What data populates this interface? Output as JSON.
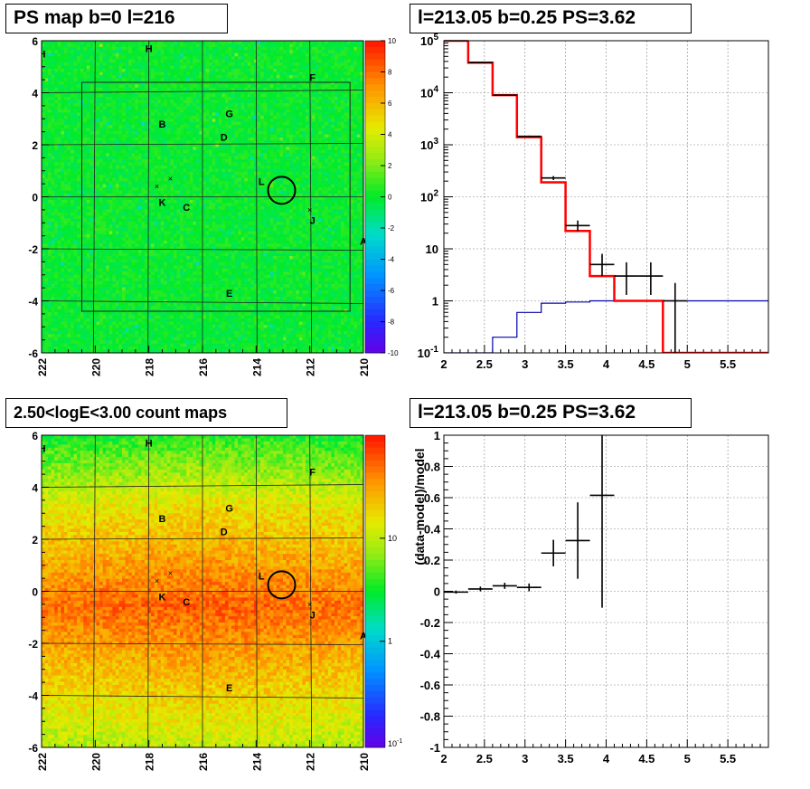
{
  "panels": {
    "tl_title": "PS map b=0 l=216",
    "tr_title": "l=213.05 b=0.25 PS=3.62",
    "bl_title": "2.50<logE<3.00 count maps",
    "br_title": "l=213.05 b=0.25 PS=3.62"
  },
  "map_ticks": {
    "x": [
      "222",
      "220",
      "218",
      "216",
      "214",
      "212",
      "210"
    ],
    "y": [
      "6",
      "4",
      "2",
      "0",
      "-2",
      "-4",
      "-6"
    ]
  },
  "colorbar_ps": {
    "labels": [
      "10",
      "8",
      "6",
      "4",
      "2",
      "0",
      "-2",
      "-4",
      "-6",
      "-8",
      "-10"
    ]
  },
  "colorbar_counts": {
    "labels": [
      "10",
      "1"
    ],
    "bottom_label": {
      "base": "10",
      "exp": "-1"
    }
  },
  "sources": [
    {
      "label": "I"
    },
    {
      "label": "H"
    },
    {
      "label": "F"
    },
    {
      "label": "G"
    },
    {
      "label": "B"
    },
    {
      "label": "D"
    },
    {
      "label": "L"
    },
    {
      "label": "K"
    },
    {
      "label": "C"
    },
    {
      "label": "J"
    },
    {
      "label": "A"
    },
    {
      "label": "E"
    }
  ],
  "chart_data": [
    {
      "type": "heatmap",
      "title": "PS map b=0 l=216",
      "xlabel": "",
      "ylabel": "",
      "xlim": [
        222,
        210
      ],
      "ylim": [
        -6,
        6
      ],
      "zlim": [
        -10,
        10
      ],
      "description_values": "PS significance map, mostly near 0",
      "sources": [
        {
          "label": "I",
          "l": 221.9,
          "b": 5.5
        },
        {
          "label": "H",
          "l": 218.0,
          "b": 5.7
        },
        {
          "label": "F",
          "l": 211.9,
          "b": 4.6
        },
        {
          "label": "G",
          "l": 215.0,
          "b": 3.2
        },
        {
          "label": "B",
          "l": 217.5,
          "b": 2.8
        },
        {
          "label": "D",
          "l": 215.2,
          "b": 2.3
        },
        {
          "label": "L",
          "l": 213.8,
          "b": 0.6
        },
        {
          "label": "K",
          "l": 217.5,
          "b": -0.2
        },
        {
          "label": "C",
          "l": 216.6,
          "b": -0.4
        },
        {
          "label": "J",
          "l": 211.9,
          "b": -0.9
        },
        {
          "label": "A",
          "l": 210.0,
          "b": -1.7
        },
        {
          "label": "E",
          "l": 215.0,
          "b": -3.7
        }
      ],
      "circle": {
        "l": 213.05,
        "b": 0.25
      }
    },
    {
      "type": "line",
      "title": "l=213.05 b=0.25 PS=3.62",
      "xlim": [
        2,
        6
      ],
      "ylim": [
        0.1,
        100000
      ],
      "yscale": "log",
      "xticks": [
        "2",
        "2.5",
        "3",
        "3.5",
        "4",
        "4.5",
        "5",
        "5.5"
      ],
      "yticks": [
        "10^-1",
        "1",
        "10",
        "10^2",
        "10^3",
        "10^4",
        "10^5"
      ],
      "grid": true,
      "model_total": {
        "color": "#ff0000",
        "edges": [
          2,
          2.3,
          2.6,
          2.9,
          3.2,
          3.5,
          3.8,
          4.1,
          4.4,
          4.7,
          5.0,
          5.3,
          5.6,
          5.9,
          6.0
        ],
        "values": [
          100000,
          38000,
          9000,
          1400,
          190,
          22,
          3,
          1,
          1,
          0.1,
          0.1,
          0.1,
          0.1,
          0.1
        ]
      },
      "model_source": {
        "color": "#0000aa",
        "edges": [
          2,
          2.3,
          2.6,
          2.9,
          3.2,
          3.5,
          3.8,
          4.1,
          4.4,
          4.7,
          5.0,
          5.3,
          5.6,
          5.9,
          6.0
        ],
        "values": [
          0.05,
          0.05,
          0.2,
          0.6,
          0.9,
          0.95,
          1.0,
          1.0,
          1.0,
          1.0,
          1.0,
          1.0,
          1.0,
          1.0
        ]
      },
      "data": [
        {
          "x": 2.15,
          "xerr": 0.15,
          "y": 100000,
          "ylo": 99000,
          "yhi": 101000
        },
        {
          "x": 2.45,
          "xerr": 0.15,
          "y": 38000,
          "ylo": 37500,
          "yhi": 38500
        },
        {
          "x": 2.75,
          "xerr": 0.15,
          "y": 9000,
          "ylo": 8800,
          "yhi": 9200
        },
        {
          "x": 3.05,
          "xerr": 0.15,
          "y": 1450,
          "ylo": 1400,
          "yhi": 1500
        },
        {
          "x": 3.35,
          "xerr": 0.15,
          "y": 230,
          "ylo": 210,
          "yhi": 250
        },
        {
          "x": 3.65,
          "xerr": 0.15,
          "y": 28,
          "ylo": 22,
          "yhi": 35
        },
        {
          "x": 3.95,
          "xerr": 0.15,
          "y": 5,
          "ylo": 3,
          "yhi": 8
        },
        {
          "x": 4.25,
          "xerr": 0.15,
          "y": 3,
          "ylo": 1.3,
          "yhi": 5.5
        },
        {
          "x": 4.55,
          "xerr": 0.15,
          "y": 3,
          "ylo": 1.3,
          "yhi": 5.5
        },
        {
          "x": 4.85,
          "xerr": 0.15,
          "y": 1,
          "ylo": 0.1,
          "yhi": 2.2
        }
      ]
    },
    {
      "type": "heatmap",
      "title": "2.50<logE<3.00 count maps",
      "xlim": [
        222,
        210
      ],
      "ylim": [
        -6,
        6
      ],
      "zscale": "log",
      "zlim": [
        0.1,
        30
      ]
    },
    {
      "type": "scatter",
      "title": "l=213.05 b=0.25 PS=3.62",
      "ylabel": "(data-model)/model",
      "xlim": [
        2,
        6
      ],
      "ylim": [
        -1,
        1
      ],
      "xticks": [
        "2",
        "2.5",
        "3",
        "3.5",
        "4",
        "4.5",
        "5",
        "5.5"
      ],
      "yticks": [
        "-1",
        "-0.8",
        "-0.6",
        "-0.4",
        "-0.2",
        "0",
        "0.2",
        "0.4",
        "0.6",
        "0.8",
        "1"
      ],
      "grid": true,
      "points": [
        {
          "x": 2.15,
          "xerr": 0.15,
          "y": -0.005,
          "yerr": 0.01
        },
        {
          "x": 2.45,
          "xerr": 0.15,
          "y": 0.015,
          "yerr": 0.015
        },
        {
          "x": 2.75,
          "xerr": 0.15,
          "y": 0.035,
          "yerr": 0.02
        },
        {
          "x": 3.05,
          "xerr": 0.15,
          "y": 0.025,
          "yerr": 0.025
        },
        {
          "x": 3.35,
          "xerr": 0.15,
          "y": 0.245,
          "yerr": 0.085
        },
        {
          "x": 3.65,
          "xerr": 0.15,
          "y": 0.325,
          "yerr": 0.245
        },
        {
          "x": 3.95,
          "xerr": 0.15,
          "y": 0.615,
          "yerr": 0.72
        }
      ]
    }
  ]
}
